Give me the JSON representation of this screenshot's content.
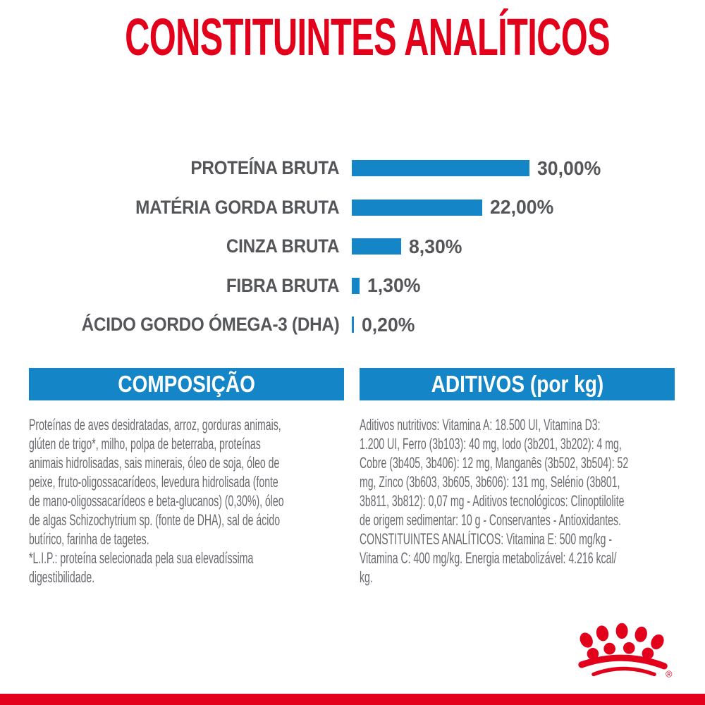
{
  "page": {
    "title": "CONSTITUINTES ANALÍTICOS"
  },
  "chart_data": {
    "type": "bar",
    "orientation": "horizontal",
    "title": "CONSTITUINTES ANALÍTICOS",
    "categories": [
      "PROTEÍNA BRUTA",
      "MATÉRIA GORDA BRUTA",
      "CINZA BRUTA",
      "FIBRA BRUTA",
      "ÁCIDO GORDO ÓMEGA-3 (DHA)"
    ],
    "values": [
      30.0,
      22.0,
      8.3,
      1.3,
      0.2
    ],
    "value_labels": [
      "30,00%",
      "22,00%",
      "8,30%",
      "1,30%",
      "0,20%"
    ],
    "unit": "%",
    "xlim": [
      0,
      30
    ],
    "grid": false,
    "legend": false,
    "bar_color": "#1485c6",
    "label_color": "#55565a"
  },
  "composition": {
    "header": "COMPOSIÇÃO",
    "body": "Proteínas de aves desidratadas, arroz, gorduras animais,\nglúten de trigo*, milho, polpa de beterraba, proteínas\nanimais hidrolisadas, sais minerais, óleo de soja, óleo de\npeixe, fruto-oligossacarídeos, levedura hidrolisada (fonte\nde mano-oligossacarídeos e beta-glucanos) (0,30%), óleo\nde algas Schizochytrium sp. (fonte de DHA), sal de ácido\nbutírico, farinha de tagetes.\n*L.I.P.: proteína selecionada pela sua elevadíssima\ndigestibilidade."
  },
  "additives": {
    "header": "ADITIVOS (por kg)",
    "body": "Aditivos nutritivos: Vitamina A: 18.500 UI, Vitamina D3:\n1.200 UI, Ferro (3b103): 40 mg, Iodo (3b201, 3b202): 4 mg,\nCobre (3b405, 3b406): 12 mg, Manganês (3b502, 3b504): 52\nmg, Zinco (3b603, 3b605, 3b606): 131 mg, Selénio (3b801,\n3b811, 3b812): 0,07 mg - Aditivos tecnológicos: Clinoptilolite\nde origem sedimentar: 10 g - Conservantes - Antioxidantes.\nCONSTITUINTES ANALÍTICOS: Vitamina E: 500 mg/kg -\nVitamina C: 400 mg/kg. Energia metabolizável: 4.216 kcal/\nkg."
  },
  "footer": {
    "logo": "royal-canin-crown",
    "registered_mark": "®"
  },
  "colors": {
    "red": "#e3001b",
    "blue": "#1485c6",
    "label_gray": "#55565a",
    "body_gray": "#68696d",
    "background": "#ffffff"
  }
}
